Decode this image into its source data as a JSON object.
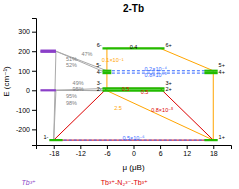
{
  "chart_data": {
    "type": "line",
    "title": "2-Tb",
    "x_label": "μ (μB)",
    "y_label": "E (cm⁻¹)",
    "xlim": [
      -22,
      22
    ],
    "ylim": [
      -280,
      370
    ],
    "xticks": [
      -18,
      -12,
      -6,
      0,
      6,
      12,
      18
    ],
    "yticks": [
      -200,
      -100,
      0,
      100,
      200,
      300
    ],
    "grid": false,
    "series": [
      {
        "type": "level",
        "color": "#8B3FC8",
        "line_style": "solid",
        "segments": [
          {
            "x1": -21,
            "x2": -17.5,
            "y": 203
          },
          {
            "x1": -21,
            "x2": -17.5,
            "y": 197
          },
          {
            "x1": -21,
            "x2": -17.5,
            "y": 0
          }
        ]
      },
      {
        "type": "level",
        "color": "#22BB00",
        "line_style": "solid",
        "segments": [
          {
            "x1": -7,
            "x2": 7,
            "y": 215
          },
          {
            "x1": -7,
            "x2": -5,
            "y": 100
          },
          {
            "x1": 16,
            "x2": 19,
            "y": 100
          },
          {
            "x1": -7,
            "x2": -5,
            "y": 88
          },
          {
            "x1": 16,
            "x2": 19,
            "y": 88
          },
          {
            "x1": -7,
            "x2": 7,
            "y": 10
          },
          {
            "x1": -7,
            "x2": 7,
            "y": -2
          },
          {
            "x1": -19,
            "x2": -16,
            "y": -255
          },
          {
            "x1": 16,
            "x2": 19,
            "y": -255
          }
        ]
      },
      {
        "type": "line",
        "color": "#AAAAAA",
        "line_style": "solid",
        "segments": [
          {
            "x1": -17.5,
            "y1": 200,
            "x2": -18,
            "y2": -255
          },
          {
            "x1": -17.5,
            "y1": 200,
            "x2": -6,
            "y2": 100
          },
          {
            "x1": -17.5,
            "y1": 200,
            "x2": -6,
            "y2": 88
          },
          {
            "x1": -17.5,
            "y1": 0,
            "x2": -6,
            "y2": 10
          },
          {
            "x1": -17.5,
            "y1": 0,
            "x2": -6,
            "y2": -2
          },
          {
            "x1": -17.5,
            "y1": 0,
            "x2": -18,
            "y2": -255
          },
          {
            "x1": -17.5,
            "y1": 0,
            "x2": -6,
            "y2": -2
          }
        ]
      },
      {
        "type": "line",
        "color": "#FFA500",
        "line_style": "solid",
        "segments": [
          {
            "x1": -6,
            "y1": 215,
            "x2": 6,
            "y2": 215
          },
          {
            "x1": 6,
            "y1": 215,
            "x2": 18,
            "y2": 100
          },
          {
            "x1": 18,
            "y1": 100,
            "x2": 18,
            "y2": -255
          },
          {
            "x1": -6,
            "y1": -2,
            "x2": -6,
            "y2": 215
          },
          {
            "x1": -6,
            "y1": -2,
            "x2": 18,
            "y2": -255
          }
        ]
      },
      {
        "type": "line",
        "color": "#DD0000",
        "line_style": "solid",
        "segments": [
          {
            "x1": -6,
            "y1": 10,
            "x2": 6,
            "y2": 10
          },
          {
            "x1": 6,
            "y1": 10,
            "x2": 18,
            "y2": -255
          },
          {
            "x1": -6,
            "y1": 10,
            "x2": -18,
            "y2": -255
          },
          {
            "x1": -18,
            "y1": -255,
            "x2": 18,
            "y2": -255
          }
        ]
      },
      {
        "type": "line",
        "color": "#3366FF",
        "line_style": "dashed",
        "segments": [
          {
            "x1": -6,
            "y1": 100,
            "x2": 18,
            "y2": 100
          },
          {
            "x1": -6,
            "y1": 88,
            "x2": 18,
            "y2": 88
          },
          {
            "x1": -18,
            "y1": -255,
            "x2": 18,
            "y2": -255
          }
        ]
      }
    ],
    "level_labels": [
      {
        "text": "6-",
        "x": -7.2,
        "y": 215
      },
      {
        "text": "6+",
        "x": 7.2,
        "y": 215
      },
      {
        "text": "5-",
        "x": -7.2,
        "y": 100
      },
      {
        "text": "5+",
        "x": 19.2,
        "y": 100
      },
      {
        "text": "4-",
        "x": -7.2,
        "y": 88
      },
      {
        "text": "4+",
        "x": 19.2,
        "y": 88
      },
      {
        "text": "3-",
        "x": -7.2,
        "y": 10
      },
      {
        "text": "3+",
        "x": 7.2,
        "y": 10
      },
      {
        "text": "2-",
        "x": -7.2,
        "y": -2
      },
      {
        "text": "2+",
        "x": 7.2,
        "y": -2
      },
      {
        "text": "1-",
        "x": -19.2,
        "y": -255
      },
      {
        "text": "1+",
        "x": 19.2,
        "y": -255
      }
    ],
    "annotations": [
      {
        "text": "47%",
        "x": -10.5,
        "y": 185,
        "color": "gray"
      },
      {
        "text": "51%",
        "x": -14,
        "y": 152,
        "color": "gray"
      },
      {
        "text": "52%",
        "x": -14,
        "y": 138,
        "color": "gray"
      },
      {
        "text": "49%",
        "x": -12.5,
        "y": 30,
        "color": "gray"
      },
      {
        "text": "95%",
        "x": -12.5,
        "y": 12,
        "color": "gray"
      },
      {
        "text": "95%",
        "x": -14,
        "y": -30,
        "color": "gray"
      },
      {
        "text": "98%",
        "x": -14,
        "y": -65,
        "color": "gray"
      },
      {
        "text": "0.1×10⁻¹",
        "x": -4.8,
        "y": 155,
        "color": "#FFA500"
      },
      {
        "text": "2.5",
        "x": -3.5,
        "y": -90,
        "color": "#FFA500"
      },
      {
        "text": "0.8×10⁻⁵",
        "x": 6.5,
        "y": -100,
        "color": "#DD0000"
      },
      {
        "text": "0.5",
        "x": -1.8,
        "y": 6,
        "color": "#DD0000"
      },
      {
        "text": "0.5",
        "x": 2.5,
        "y": -7,
        "color": "#DD0000"
      },
      {
        "text": "0.2×10⁻⁴",
        "x": 5,
        "y": 106,
        "color": "#3366FF"
      },
      {
        "text": "0.8×10⁻⁵",
        "x": 5,
        "y": 79,
        "color": "#3366FF"
      },
      {
        "text": "0.5×10⁻⁶",
        "x": 0,
        "y": -242,
        "color": "#3366FF"
      },
      {
        "text": "0.4",
        "x": 0,
        "y": 220,
        "color": "black"
      }
    ],
    "footer": [
      {
        "text": "Tb³⁺",
        "color": "#8B3FC8"
      },
      {
        "text": "Tb³⁺-N₂³⁻-Tb³⁺",
        "color": "#DD0000"
      }
    ]
  }
}
